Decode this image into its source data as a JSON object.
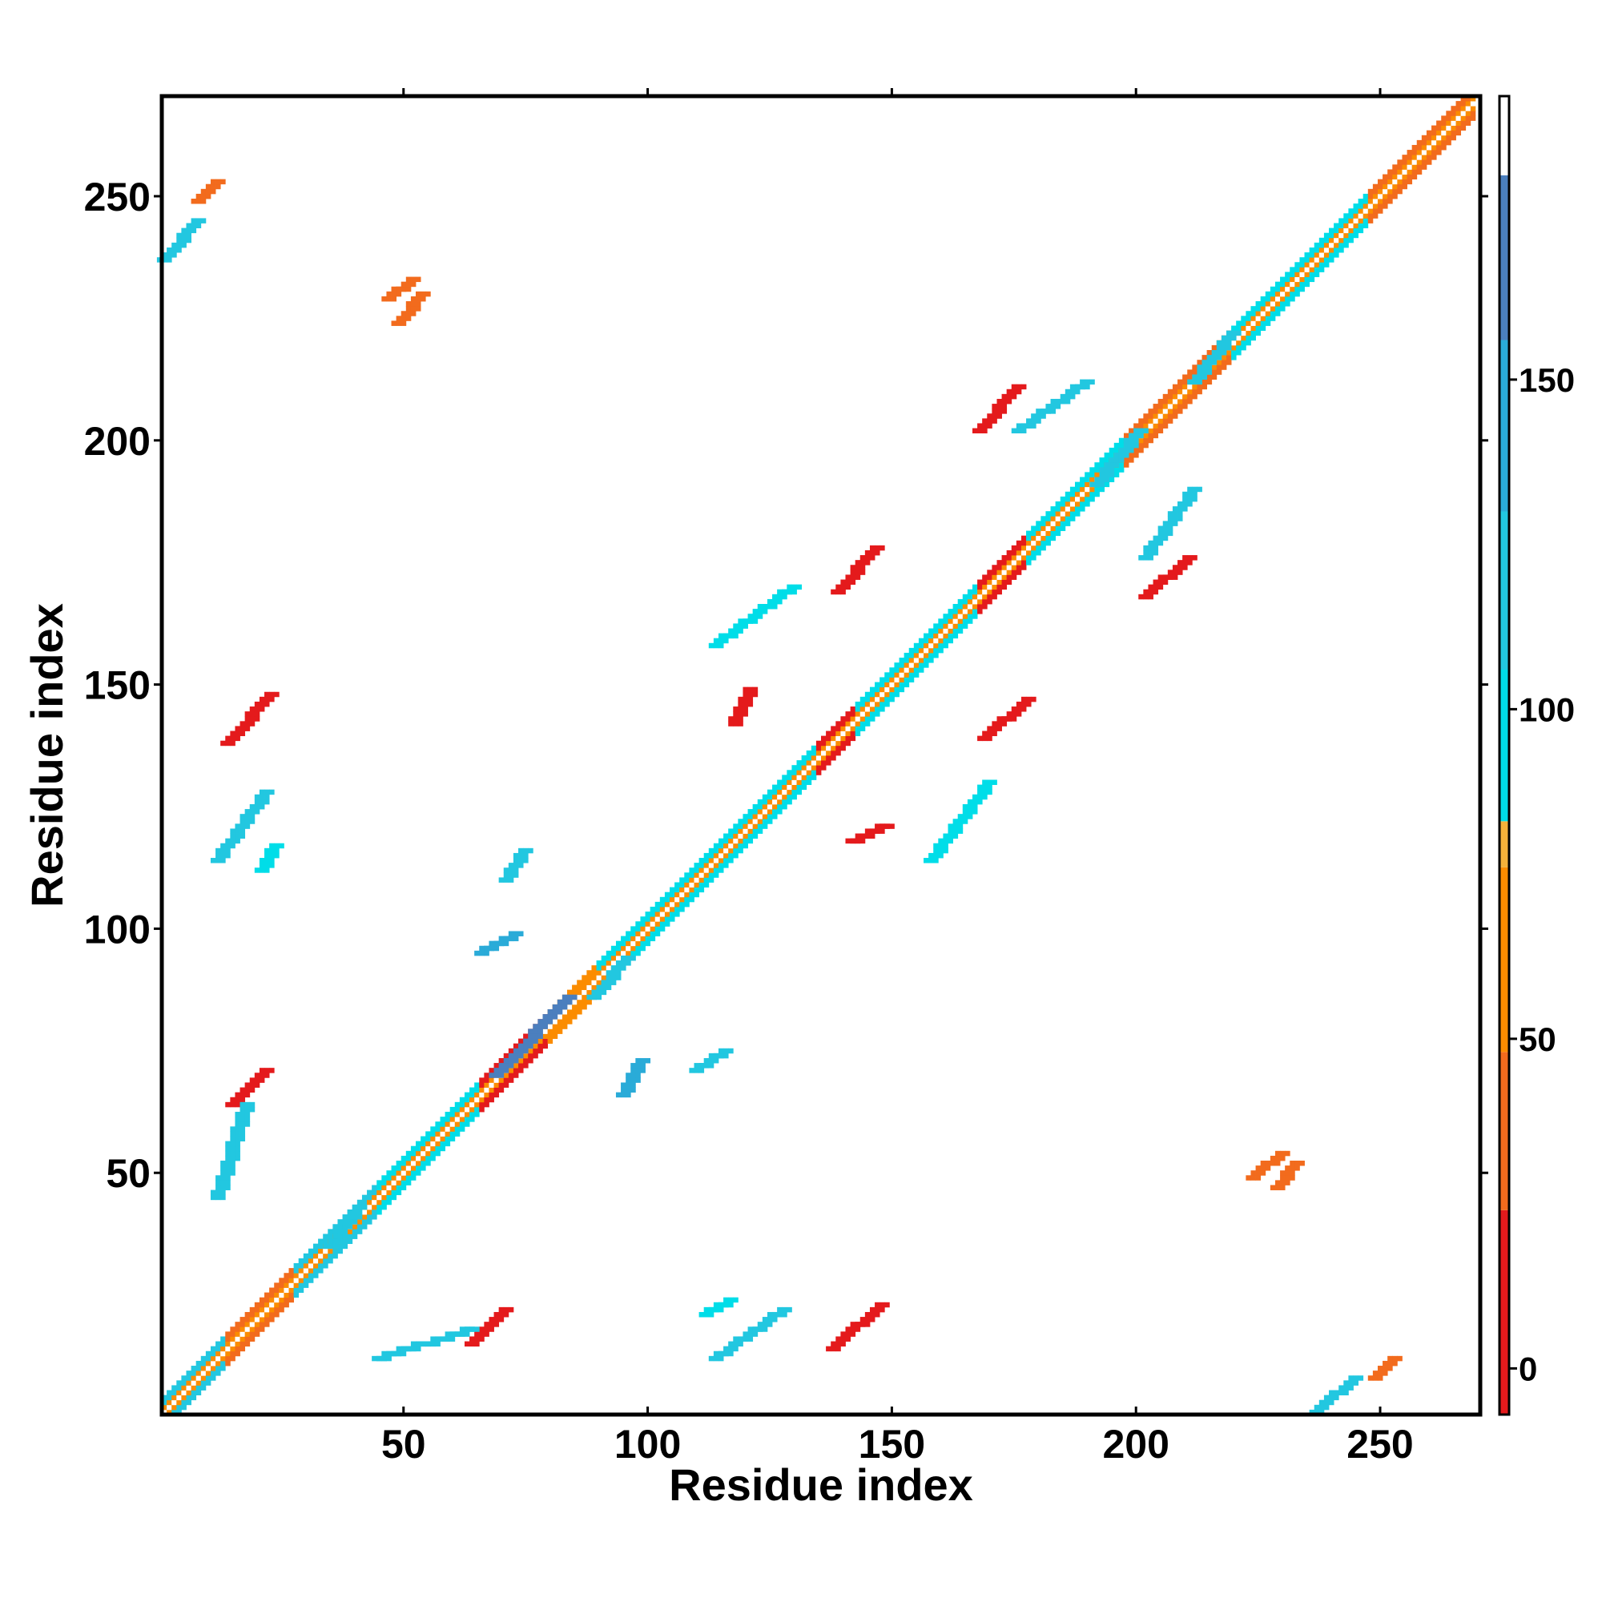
{
  "chart_data": {
    "type": "heatmap",
    "title": "",
    "xlabel": "Residue index",
    "ylabel": "Residue index",
    "xlim": [
      1,
      270
    ],
    "ylim": [
      1,
      270
    ],
    "xticks": [
      50,
      100,
      150,
      200,
      250
    ],
    "yticks": [
      50,
      100,
      150,
      200,
      250
    ],
    "colorbar": {
      "ticks": [
        0,
        50,
        100,
        150
      ],
      "range": [
        -7,
        193
      ],
      "bands": [
        {
          "from": -7,
          "to": 24,
          "color": "#e41a1c"
        },
        {
          "from": 24,
          "to": 48,
          "color": "#f26b1d"
        },
        {
          "from": 48,
          "to": 76,
          "color": "#fb8c00"
        },
        {
          "from": 76,
          "to": 83,
          "color": "#f4b13a"
        },
        {
          "from": 83,
          "to": 106,
          "color": "#00dde8"
        },
        {
          "from": 106,
          "to": 130,
          "color": "#22c7e0"
        },
        {
          "from": 130,
          "to": 156,
          "color": "#2aabd8"
        },
        {
          "from": 156,
          "to": 181,
          "color": "#4b7fbe"
        },
        {
          "from": 181,
          "to": 193,
          "color": "#ffffff"
        }
      ]
    },
    "diagonal": {
      "from": 1,
      "to": 270,
      "segments": [
        {
          "from": 1,
          "to": 14,
          "value": 120
        },
        {
          "from": 14,
          "to": 28,
          "value": 30
        },
        {
          "from": 28,
          "to": 45,
          "value": 110
        },
        {
          "from": 45,
          "to": 66,
          "value": 95
        },
        {
          "from": 66,
          "to": 80,
          "value": 10
        },
        {
          "from": 80,
          "to": 90,
          "value": 60
        },
        {
          "from": 90,
          "to": 110,
          "value": 100
        },
        {
          "from": 110,
          "to": 135,
          "value": 90
        },
        {
          "from": 135,
          "to": 143,
          "value": 5
        },
        {
          "from": 143,
          "to": 168,
          "value": 100
        },
        {
          "from": 168,
          "to": 178,
          "value": 10
        },
        {
          "from": 178,
          "to": 198,
          "value": 95
        },
        {
          "from": 198,
          "to": 220,
          "value": 30
        },
        {
          "from": 220,
          "to": 248,
          "value": 100
        },
        {
          "from": 248,
          "to": 270,
          "value": 40
        }
      ]
    },
    "contacts": [
      {
        "x": [
          14,
          23
        ],
        "y": [
          138,
          148
        ],
        "value": 5
      },
      {
        "x": [
          138,
          148
        ],
        "y": [
          14,
          23
        ],
        "value": 5
      },
      {
        "x": [
          15,
          22
        ],
        "y": [
          64,
          71
        ],
        "value": 10
      },
      {
        "x": [
          64,
          71
        ],
        "y": [
          15,
          22
        ],
        "value": 10
      },
      {
        "x": [
          139,
          147
        ],
        "y": [
          169,
          178
        ],
        "value": 5
      },
      {
        "x": [
          169,
          178
        ],
        "y": [
          139,
          147
        ],
        "value": 5
      },
      {
        "x": [
          168,
          176
        ],
        "y": [
          202,
          211
        ],
        "value": 8
      },
      {
        "x": [
          202,
          211
        ],
        "y": [
          168,
          176
        ],
        "value": 8
      },
      {
        "x": [
          142,
          149
        ],
        "y": [
          118,
          121
        ],
        "value": 20
      },
      {
        "x": [
          118,
          121
        ],
        "y": [
          142,
          149
        ],
        "value": 20
      },
      {
        "x": [
          69,
          84
        ],
        "y": [
          70,
          86
        ],
        "value": 160
      },
      {
        "x": [
          89,
          96
        ],
        "y": [
          86,
          94
        ],
        "value": 120
      },
      {
        "x": [
          66,
          73
        ],
        "y": [
          95,
          99
        ],
        "value": 130
      },
      {
        "x": [
          95,
          99
        ],
        "y": [
          66,
          73
        ],
        "value": 130
      },
      {
        "x": [
          71,
          75
        ],
        "y": [
          110,
          116
        ],
        "value": 110
      },
      {
        "x": [
          110,
          116
        ],
        "y": [
          71,
          75
        ],
        "value": 110
      },
      {
        "x": [
          21,
          24
        ],
        "y": [
          112,
          117
        ],
        "value": 105
      },
      {
        "x": [
          112,
          117
        ],
        "y": [
          21,
          24
        ],
        "value": 105
      },
      {
        "x": [
          192,
          201
        ],
        "y": [
          191,
          202
        ],
        "value": 110
      },
      {
        "x": [
          212,
          220
        ],
        "y": [
          212,
          222
        ],
        "value": 110
      },
      {
        "x": [
          35,
          41
        ],
        "y": [
          35,
          43
        ],
        "value": 110
      },
      {
        "x": [
          158,
          170
        ],
        "y": [
          114,
          130
        ],
        "value": 100
      },
      {
        "x": [
          114,
          130
        ],
        "y": [
          158,
          170
        ],
        "value": 100
      },
      {
        "x": [
          176,
          190
        ],
        "y": [
          202,
          212
        ],
        "value": 115
      },
      {
        "x": [
          202,
          212
        ],
        "y": [
          176,
          190
        ],
        "value": 115
      },
      {
        "x": [
          229,
          233
        ],
        "y": [
          47,
          52
        ],
        "value": 45
      },
      {
        "x": [
          47,
          52
        ],
        "y": [
          229,
          233
        ],
        "value": 45
      },
      {
        "x": [
          237,
          245
        ],
        "y": [
          1,
          8
        ],
        "value": 110
      },
      {
        "x": [
          1,
          8
        ],
        "y": [
          237,
          245
        ],
        "value": 110
      },
      {
        "x": [
          49,
          54
        ],
        "y": [
          224,
          230
        ],
        "value": 40
      },
      {
        "x": [
          224,
          230
        ],
        "y": [
          49,
          54
        ],
        "value": 40
      },
      {
        "x": [
          114,
          128
        ],
        "y": [
          12,
          22
        ],
        "value": 120
      },
      {
        "x": [
          12,
          22
        ],
        "y": [
          114,
          128
        ],
        "value": 120
      },
      {
        "x": [
          45,
          64
        ],
        "y": [
          12,
          18
        ],
        "value": 115
      },
      {
        "x": [
          12,
          18
        ],
        "y": [
          45,
          64
        ],
        "value": 115
      },
      {
        "x": [
          8,
          12
        ],
        "y": [
          249,
          253
        ],
        "value": 40
      },
      {
        "x": [
          249,
          253
        ],
        "y": [
          8,
          12
        ],
        "value": 40
      }
    ]
  }
}
